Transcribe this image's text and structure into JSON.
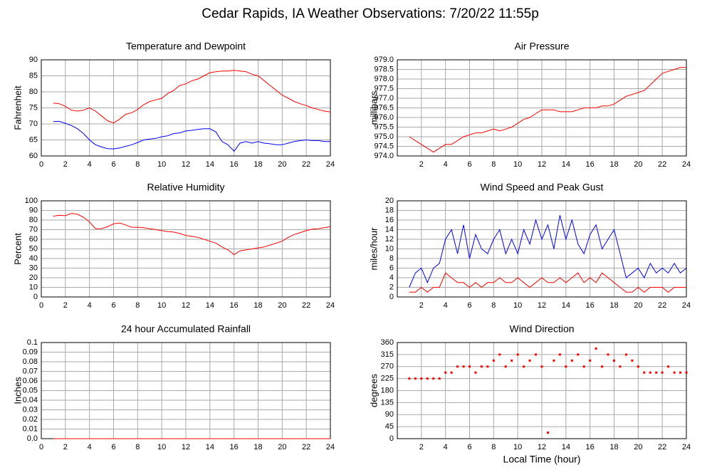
{
  "title": "Cedar Rapids, IA Weather Observations: 7/20/22 11:55p",
  "chart_data": [
    {
      "type": "line",
      "title": "Temperature and Dewpoint",
      "ylabel": "Fahrenheit",
      "x": [
        1,
        1.5,
        2,
        2.5,
        3,
        3.5,
        4,
        4.5,
        5,
        5.5,
        6,
        6.5,
        7,
        7.5,
        8,
        8.5,
        9,
        9.5,
        10,
        10.5,
        11,
        11.5,
        12,
        12.5,
        13,
        13.5,
        14,
        14.5,
        15,
        15.5,
        16,
        16.5,
        17,
        17.5,
        18,
        18.5,
        19,
        19.5,
        20,
        20.5,
        21,
        21.5,
        22,
        22.5,
        23,
        23.5,
        24
      ],
      "xlim": [
        0,
        24
      ],
      "xticks": [
        0,
        2,
        4,
        6,
        8,
        10,
        12,
        14,
        16,
        18,
        20,
        22,
        24
      ],
      "ylim": [
        60,
        90
      ],
      "yticks": [
        60,
        65,
        70,
        75,
        80,
        85,
        90
      ],
      "grid": true,
      "series": [
        {
          "color": "#ff0000",
          "values": [
            76.5,
            76.3,
            75.5,
            74.3,
            74,
            74.3,
            75,
            74,
            72.5,
            71,
            70.3,
            71.5,
            73,
            73.5,
            74.5,
            76,
            77,
            77.5,
            78,
            79.5,
            80.5,
            82,
            82.5,
            83.5,
            84,
            85,
            86,
            86.3,
            86.5,
            86.5,
            86.7,
            86.5,
            86.3,
            85.5,
            85,
            83.5,
            82,
            80.5,
            79,
            78,
            77,
            76.3,
            75.7,
            75,
            74.5,
            74,
            73.7
          ]
        },
        {
          "color": "#0000ff",
          "values": [
            70.7,
            70.8,
            70.2,
            69.5,
            68.5,
            67,
            65,
            63.5,
            62.8,
            62.3,
            62.2,
            62.5,
            63,
            63.5,
            64.2,
            65,
            65.3,
            65.5,
            66,
            66.3,
            67,
            67.2,
            67.8,
            68,
            68.3,
            68.5,
            68.5,
            67.5,
            64.5,
            63.5,
            61.5,
            64,
            64.5,
            64,
            64.5,
            64,
            63.8,
            63.5,
            63.5,
            64,
            64.5,
            64.8,
            65,
            64.8,
            64.8,
            64.5,
            64.5
          ]
        }
      ]
    },
    {
      "type": "line",
      "title": "Air Pressure",
      "ylabel": "millibars",
      "x": [
        1,
        1.5,
        2,
        2.5,
        3,
        3.5,
        4,
        4.5,
        5,
        5.5,
        6,
        6.5,
        7,
        7.5,
        8,
        8.5,
        9,
        9.5,
        10,
        10.5,
        11,
        11.5,
        12,
        12.5,
        13,
        13.5,
        14,
        14.5,
        15,
        15.5,
        16,
        16.5,
        17,
        17.5,
        18,
        18.5,
        19,
        19.5,
        20,
        20.5,
        21,
        21.5,
        22,
        22.5,
        23,
        23.5,
        24
      ],
      "xlim": [
        0,
        24
      ],
      "xticks": [
        2,
        4,
        6,
        8,
        10,
        12,
        14,
        16,
        18,
        20,
        22,
        24
      ],
      "ylim": [
        974,
        979
      ],
      "yticks": [
        {
          "value": 974,
          "label": "974.0"
        },
        974.5,
        {
          "value": 975,
          "label": "975.0"
        },
        975.5,
        {
          "value": 976,
          "label": "976.0"
        },
        976.5,
        {
          "value": 977,
          "label": "977.0"
        },
        977.5,
        {
          "value": 978,
          "label": "978.0"
        },
        978.5,
        {
          "value": 979,
          "label": "979.0"
        }
      ],
      "grid": true,
      "series": [
        {
          "color": "#ff0000",
          "values": [
            975.0,
            974.8,
            974.6,
            974.4,
            974.2,
            974.4,
            974.6,
            974.6,
            974.8,
            975.0,
            975.1,
            975.2,
            975.2,
            975.3,
            975.4,
            975.3,
            975.4,
            975.5,
            975.7,
            975.9,
            976.0,
            976.2,
            976.4,
            976.4,
            976.4,
            976.3,
            976.3,
            976.3,
            976.4,
            976.5,
            976.5,
            976.5,
            976.6,
            976.6,
            976.7,
            976.9,
            977.1,
            977.2,
            977.3,
            977.4,
            977.7,
            978.0,
            978.3,
            978.4,
            978.5,
            978.6,
            978.6
          ]
        }
      ]
    },
    {
      "type": "line",
      "title": "Relative Humidity",
      "ylabel": "Percent",
      "x": [
        1,
        1.5,
        2,
        2.5,
        3,
        3.5,
        4,
        4.5,
        5,
        5.5,
        6,
        6.5,
        7,
        7.5,
        8,
        8.5,
        9,
        9.5,
        10,
        10.5,
        11,
        11.5,
        12,
        12.5,
        13,
        13.5,
        14,
        14.5,
        15,
        15.5,
        16,
        16.5,
        17,
        17.5,
        18,
        18.5,
        19,
        19.5,
        20,
        20.5,
        21,
        21.5,
        22,
        22.5,
        23,
        23.5,
        24
      ],
      "xlim": [
        0,
        24
      ],
      "xticks": [
        0,
        2,
        4,
        6,
        8,
        10,
        12,
        14,
        16,
        18,
        20,
        22,
        24
      ],
      "ylim": [
        0,
        100
      ],
      "yticks": [
        0,
        10,
        20,
        30,
        40,
        50,
        60,
        70,
        80,
        90,
        100
      ],
      "grid": true,
      "series": [
        {
          "color": "#ff0000",
          "values": [
            84,
            85,
            84.5,
            87,
            86,
            83,
            78,
            71,
            71,
            73,
            76,
            77,
            75,
            72.5,
            72.5,
            72,
            71,
            70,
            69,
            68,
            67.5,
            66,
            64,
            63,
            62,
            60,
            58,
            56,
            52,
            49,
            44,
            48,
            49,
            50,
            51,
            52,
            54,
            56,
            58,
            62,
            65,
            67,
            69,
            70.5,
            71,
            72,
            73
          ]
        }
      ]
    },
    {
      "type": "line",
      "title": "Wind Speed and Peak Gust",
      "ylabel": "miles/hour",
      "x": [
        1,
        1.5,
        2,
        2.5,
        3,
        3.5,
        4,
        4.5,
        5,
        5.5,
        6,
        6.5,
        7,
        7.5,
        8,
        8.5,
        9,
        9.5,
        10,
        10.5,
        11,
        11.5,
        12,
        12.5,
        13,
        13.5,
        14,
        14.5,
        15,
        15.5,
        16,
        16.5,
        17,
        17.5,
        18,
        18.5,
        19,
        19.5,
        20,
        20.5,
        21,
        21.5,
        22,
        22.5,
        23,
        23.5,
        24
      ],
      "xlim": [
        0,
        24
      ],
      "xticks": [
        2,
        4,
        6,
        8,
        10,
        12,
        14,
        16,
        18,
        20,
        22,
        24
      ],
      "ylim": [
        0,
        20
      ],
      "yticks": [
        0,
        2,
        4,
        6,
        8,
        10,
        12,
        14,
        16,
        18,
        20
      ],
      "grid": true,
      "series": [
        {
          "color": "#0000ff",
          "values": [
            2,
            5,
            6,
            3,
            6,
            7,
            12,
            14,
            9,
            15,
            8,
            13,
            10,
            9,
            12,
            14,
            9,
            12,
            9,
            14,
            11,
            16,
            12,
            15,
            10,
            17,
            12,
            16,
            11,
            9,
            13,
            15,
            10,
            12,
            14,
            9,
            4,
            5,
            6,
            4,
            7,
            5,
            6,
            5,
            7,
            5,
            6
          ]
        },
        {
          "color": "#ff0000",
          "values": [
            1,
            1,
            2,
            1,
            2,
            2,
            5,
            4,
            3,
            3,
            2,
            3,
            2,
            3,
            3,
            4,
            3,
            3,
            4,
            3,
            2,
            3,
            4,
            3,
            3,
            4,
            3,
            4,
            5,
            3,
            4,
            3,
            5,
            4,
            3,
            2,
            1,
            1,
            2,
            1,
            2,
            2,
            2,
            1,
            2,
            2,
            2
          ]
        }
      ]
    },
    {
      "type": "line",
      "title": "24 hour Accumulated Rainfall",
      "ylabel": "Inches",
      "x": [
        1,
        24
      ],
      "xlim": [
        0,
        24
      ],
      "xticks": [
        0,
        2,
        4,
        6,
        8,
        10,
        12,
        14,
        16,
        18,
        20,
        22,
        24
      ],
      "ylim": [
        0,
        0.1
      ],
      "yticks": [
        {
          "value": 0,
          "label": "0.0"
        },
        0.01,
        0.02,
        0.03,
        0.04,
        0.05,
        0.06,
        0.07,
        0.08,
        0.09,
        0.1
      ],
      "grid": true,
      "series": [
        {
          "color": "#ff0000",
          "values": [
            0,
            0
          ]
        }
      ]
    },
    {
      "type": "scatter",
      "title": "Wind Direction",
      "ylabel": "degrees",
      "xlabel": "Local Time (hour)",
      "x": [
        1,
        1.5,
        2,
        2.5,
        3,
        3.5,
        4,
        4.5,
        5,
        5.5,
        6,
        6.5,
        7,
        7.5,
        8,
        8.5,
        9,
        9.5,
        10,
        10.5,
        11,
        11.5,
        12,
        12.5,
        13,
        13.5,
        14,
        14.5,
        15,
        15.5,
        16,
        16.5,
        17,
        17.5,
        18,
        18.5,
        19,
        19.5,
        20,
        20.5,
        21,
        21.5,
        22,
        22.5,
        23,
        23.5,
        24
      ],
      "xlim": [
        0,
        24
      ],
      "xticks": [
        2,
        4,
        6,
        8,
        10,
        12,
        14,
        16,
        18,
        20,
        22,
        24
      ],
      "ylim": [
        0,
        360
      ],
      "yticks": [
        0,
        45,
        90,
        135,
        180,
        225,
        270,
        315,
        360
      ],
      "grid": true,
      "series": [
        {
          "color": "#ff0000",
          "values": [
            225,
            225,
            225,
            225,
            225,
            225,
            247.5,
            247.5,
            270,
            270,
            270,
            247.5,
            270,
            270,
            292.5,
            315,
            270,
            292.5,
            315,
            270,
            292.5,
            315,
            270,
            22.5,
            292.5,
            315,
            270,
            292.5,
            315,
            270,
            292.5,
            337.5,
            270,
            315,
            292.5,
            270,
            315,
            292.5,
            270,
            247.5,
            247.5,
            247.5,
            247.5,
            270,
            247.5,
            247.5,
            247.5
          ]
        }
      ]
    }
  ]
}
